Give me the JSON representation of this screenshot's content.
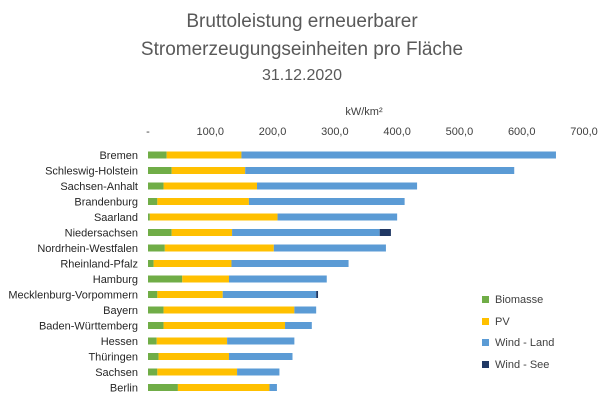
{
  "chart_data": {
    "type": "bar",
    "orientation": "horizontal",
    "stacked": true,
    "title_line1": "Bruttoleistung erneuerbarer",
    "title_line2": "Stromerzeugungseinheiten pro Fläche",
    "subtitle": "31.12.2020",
    "xlabel": "kW/km²",
    "xlim": [
      0,
      700
    ],
    "xticks": [
      "-",
      "100,0",
      "200,0",
      "300,0",
      "400,0",
      "500,0",
      "600,0",
      "700,0"
    ],
    "grid": false,
    "legend_position": "right",
    "categories": [
      "Bremen",
      "Schleswig-Holstein",
      "Sachsen-Anhalt",
      "Brandenburg",
      "Saarland",
      "Niedersachsen",
      "Nordrhein-Westfalen",
      "Rheinland-Pfalz",
      "Hamburg",
      "Mecklenburg-Vorpommern",
      "Bayern",
      "Baden-Württemberg",
      "Hessen",
      "Thüringen",
      "Sachsen",
      "Berlin"
    ],
    "series": [
      {
        "name": "Biomasse",
        "color": "#70AD47",
        "values": [
          30,
          38,
          25,
          15,
          3,
          38,
          27,
          9,
          55,
          15,
          25,
          25,
          14,
          17,
          15,
          48
        ]
      },
      {
        "name": "PV",
        "color": "#FFC000",
        "values": [
          120,
          118,
          150,
          147,
          205,
          97,
          175,
          125,
          75,
          105,
          210,
          195,
          113,
          113,
          128,
          147
        ]
      },
      {
        "name": "Wind - Land",
        "color": "#5B9BD5",
        "values": [
          505,
          432,
          257,
          250,
          192,
          237,
          180,
          188,
          157,
          150,
          35,
          43,
          108,
          102,
          68,
          12
        ]
      },
      {
        "name": "Wind - See",
        "color": "#203864",
        "values": [
          0,
          0,
          0,
          0,
          0,
          18,
          0,
          0,
          0,
          3,
          0,
          0,
          0,
          0,
          0,
          0
        ]
      }
    ]
  }
}
